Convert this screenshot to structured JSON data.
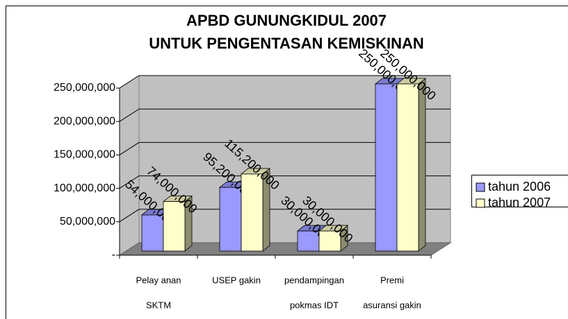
{
  "chart_data": {
    "type": "bar3d",
    "title": [
      "APBD GUNUNGKIDUL 2007",
      "UNTUK PENGENTASAN KEMISKINAN"
    ],
    "categories": [
      [
        "Pelay anan",
        "SKTM"
      ],
      [
        "USEP gakin"
      ],
      [
        "pendampingan",
        "pokmas IDT"
      ],
      [
        "Premi",
        "asuransi gakin"
      ]
    ],
    "series": [
      {
        "name": "tahun 2006",
        "color": "#9999ff",
        "values": [
          54000000,
          95200000,
          30000000,
          250000000
        ],
        "value_labels": [
          "54,000,000",
          "95,200,000",
          "30,000,000",
          "250,000,000"
        ]
      },
      {
        "name": "tahun 2007",
        "color": "#ffffcc",
        "values": [
          74000000,
          115200000,
          30000000,
          250000000
        ],
        "value_labels": [
          "74,000,000",
          "115,200,000",
          "30,000,000",
          "250,000,000"
        ]
      }
    ],
    "ylim": [
      0,
      250000000
    ],
    "yticks": [
      {
        "value": 0,
        "label": "-"
      },
      {
        "value": 50000000,
        "label": "50,000,000"
      },
      {
        "value": 100000000,
        "label": "100,000,000"
      },
      {
        "value": 150000000,
        "label": "150,000,000"
      },
      {
        "value": 200000000,
        "label": "200,000,000"
      },
      {
        "value": 250000000,
        "label": "250,000,000"
      }
    ],
    "grid": true,
    "legend": "right"
  }
}
